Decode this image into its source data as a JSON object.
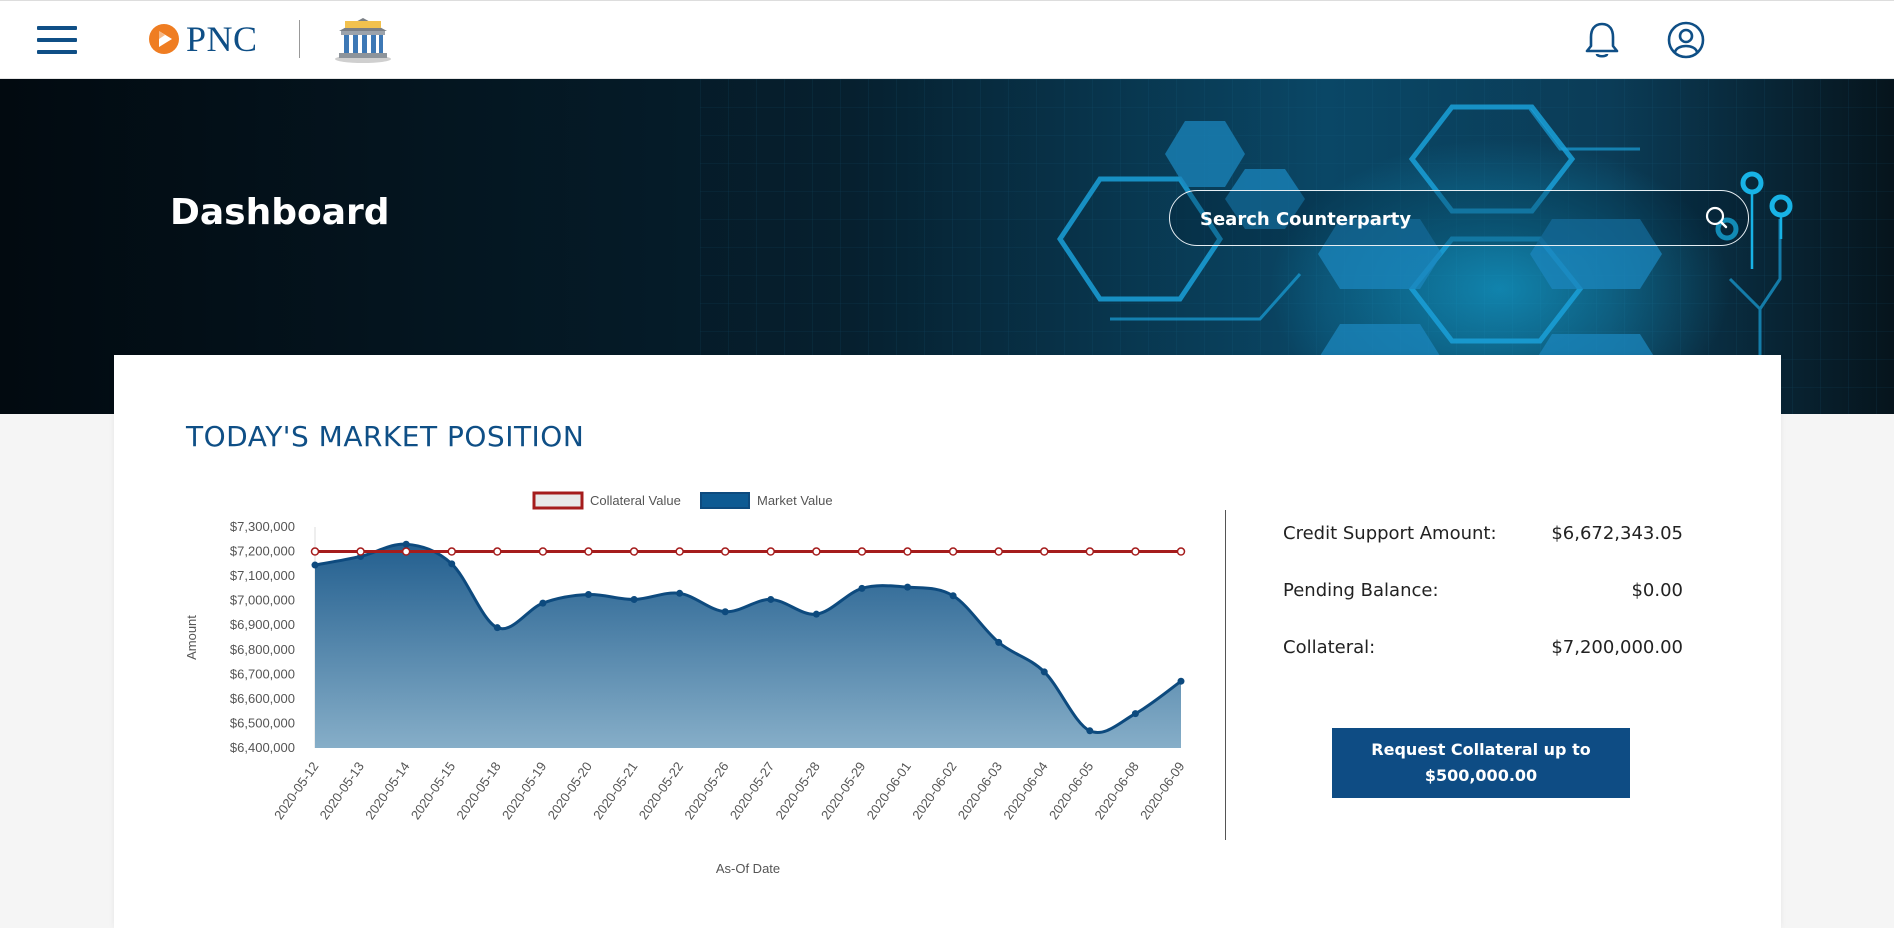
{
  "header": {
    "brand": "PNC",
    "icons": [
      "menu-icon",
      "pnc-logo-icon",
      "bank-icon",
      "bell-icon",
      "user-icon"
    ]
  },
  "hero": {
    "title": "Dashboard",
    "search_placeholder": "Search Counterparty"
  },
  "market": {
    "title": "TODAY'S MARKET POSITION",
    "summary": [
      {
        "label": "Credit Support Amount:",
        "value": "$6,672,343.05"
      },
      {
        "label": "Pending Balance:",
        "value": "$0.00"
      },
      {
        "label": "Collateral:",
        "value": "$7,200,000.00"
      }
    ],
    "request_button_line1": "Request Collateral up to",
    "request_button_line2": "$500,000.00"
  },
  "colors": {
    "brand_blue": "#0f4f86",
    "collateral_line": "#a51c1c",
    "market_area_top": "#235f8f",
    "market_area_bottom": "#86aec8",
    "button_blue": "#0e4c84"
  },
  "chart_data": {
    "type": "area",
    "xlabel": "As-Of Date",
    "ylabel": "Amount",
    "ylim": [
      6400000,
      7300000
    ],
    "yticks": [
      "$7,300,000",
      "$7,200,000",
      "$7,100,000",
      "$7,000,000",
      "$6,900,000",
      "$6,800,000",
      "$6,700,000",
      "$6,600,000",
      "$6,500,000",
      "$6,400,000"
    ],
    "legend_position": "top",
    "x": [
      "2020-05-12",
      "2020-05-13",
      "2020-05-14",
      "2020-05-15",
      "2020-05-18",
      "2020-05-19",
      "2020-05-20",
      "2020-05-21",
      "2020-05-22",
      "2020-05-26",
      "2020-05-27",
      "2020-05-28",
      "2020-05-29",
      "2020-06-01",
      "2020-06-02",
      "2020-06-03",
      "2020-06-04",
      "2020-06-05",
      "2020-06-08",
      "2020-06-09"
    ],
    "series": [
      {
        "name": "Collateral Value",
        "type": "line",
        "values": [
          7200000,
          7200000,
          7200000,
          7200000,
          7200000,
          7200000,
          7200000,
          7200000,
          7200000,
          7200000,
          7200000,
          7200000,
          7200000,
          7200000,
          7200000,
          7200000,
          7200000,
          7200000,
          7200000,
          7200000
        ]
      },
      {
        "name": "Market Value",
        "type": "area",
        "values": [
          7145000,
          7180000,
          7230000,
          7150000,
          6890000,
          6990000,
          7025000,
          7005000,
          7030000,
          6955000,
          7005000,
          6945000,
          7050000,
          7055000,
          7020000,
          6830000,
          6710000,
          6470000,
          6540000,
          6672000
        ]
      }
    ]
  }
}
